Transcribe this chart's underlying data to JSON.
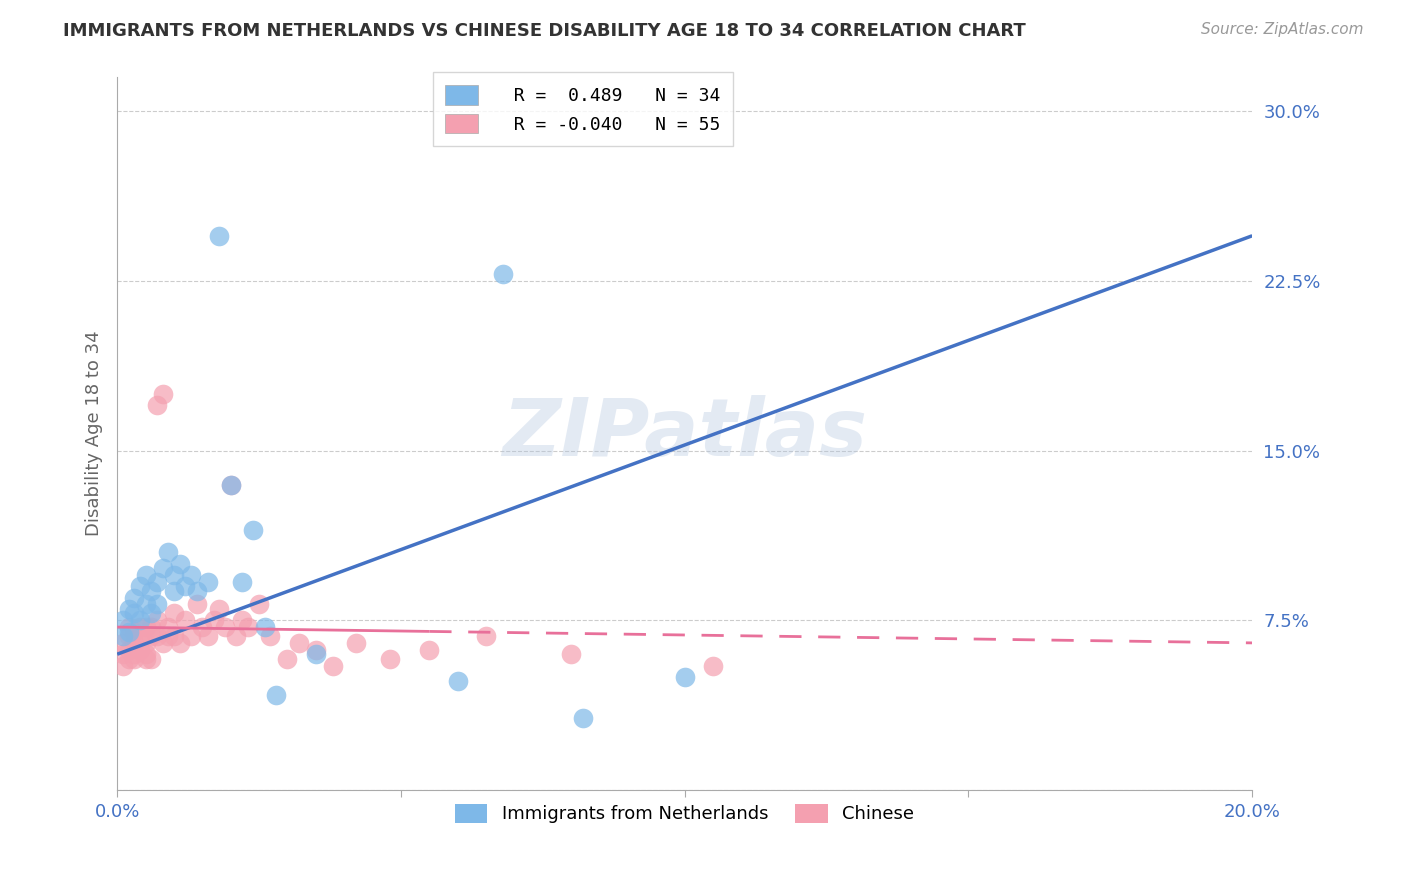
{
  "title": "IMMIGRANTS FROM NETHERLANDS VS CHINESE DISABILITY AGE 18 TO 34 CORRELATION CHART",
  "source": "Source: ZipAtlas.com",
  "ylabel": "Disability Age 18 to 34",
  "xmin": 0.0,
  "xmax": 0.2,
  "ymin": 0.0,
  "ymax": 0.315,
  "yticks": [
    0.0,
    0.075,
    0.15,
    0.225,
    0.3
  ],
  "ytick_labels": [
    "",
    "7.5%",
    "15.0%",
    "22.5%",
    "30.0%"
  ],
  "xticks": [
    0.0,
    0.05,
    0.1,
    0.15,
    0.2
  ],
  "xtick_labels": [
    "0.0%",
    "",
    "",
    "",
    "20.0%"
  ],
  "legend_r1": "R =  0.489",
  "legend_n1": "N = 34",
  "legend_r2": "R = -0.040",
  "legend_n2": "N = 55",
  "color_netherlands": "#7EB8E8",
  "color_chinese": "#F4A0B0",
  "color_netherlands_dark": "#4472C4",
  "color_chinese_dark": "#E8709A",
  "color_axis_labels": "#4472C4",
  "color_grid": "#CCCCCC",
  "watermark": "ZIPatlas",
  "nl_trend_x0": 0.0,
  "nl_trend_y0": 0.06,
  "nl_trend_x1": 0.2,
  "nl_trend_y1": 0.245,
  "ch_trend_x0": 0.0,
  "ch_trend_y0": 0.072,
  "ch_trend_x1": 0.2,
  "ch_trend_y1": 0.065,
  "nl_x": [
    0.001,
    0.001,
    0.002,
    0.002,
    0.003,
    0.003,
    0.004,
    0.004,
    0.005,
    0.005,
    0.006,
    0.006,
    0.007,
    0.007,
    0.008,
    0.009,
    0.01,
    0.01,
    0.011,
    0.012,
    0.013,
    0.014,
    0.016,
    0.018,
    0.02,
    0.022,
    0.024,
    0.026,
    0.028,
    0.035,
    0.06,
    0.068,
    0.082,
    0.1
  ],
  "nl_y": [
    0.068,
    0.075,
    0.08,
    0.07,
    0.085,
    0.078,
    0.09,
    0.075,
    0.095,
    0.082,
    0.088,
    0.078,
    0.092,
    0.082,
    0.098,
    0.105,
    0.095,
    0.088,
    0.1,
    0.09,
    0.095,
    0.088,
    0.092,
    0.245,
    0.135,
    0.092,
    0.115,
    0.072,
    0.042,
    0.06,
    0.048,
    0.228,
    0.032,
    0.05
  ],
  "ch_x": [
    0.001,
    0.001,
    0.001,
    0.002,
    0.002,
    0.002,
    0.002,
    0.003,
    0.003,
    0.003,
    0.003,
    0.004,
    0.004,
    0.004,
    0.005,
    0.005,
    0.005,
    0.005,
    0.006,
    0.006,
    0.006,
    0.007,
    0.007,
    0.007,
    0.008,
    0.008,
    0.009,
    0.009,
    0.01,
    0.01,
    0.011,
    0.012,
    0.013,
    0.014,
    0.015,
    0.016,
    0.017,
    0.018,
    0.019,
    0.02,
    0.021,
    0.022,
    0.023,
    0.025,
    0.027,
    0.03,
    0.032,
    0.035,
    0.038,
    0.042,
    0.048,
    0.055,
    0.065,
    0.08,
    0.105
  ],
  "ch_y": [
    0.06,
    0.065,
    0.055,
    0.068,
    0.058,
    0.072,
    0.062,
    0.065,
    0.058,
    0.07,
    0.06,
    0.072,
    0.062,
    0.068,
    0.058,
    0.065,
    0.072,
    0.06,
    0.068,
    0.058,
    0.072,
    0.17,
    0.068,
    0.075,
    0.065,
    0.175,
    0.068,
    0.072,
    0.078,
    0.068,
    0.065,
    0.075,
    0.068,
    0.082,
    0.072,
    0.068,
    0.075,
    0.08,
    0.072,
    0.135,
    0.068,
    0.075,
    0.072,
    0.082,
    0.068,
    0.058,
    0.065,
    0.062,
    0.055,
    0.065,
    0.058,
    0.062,
    0.068,
    0.06,
    0.055
  ]
}
